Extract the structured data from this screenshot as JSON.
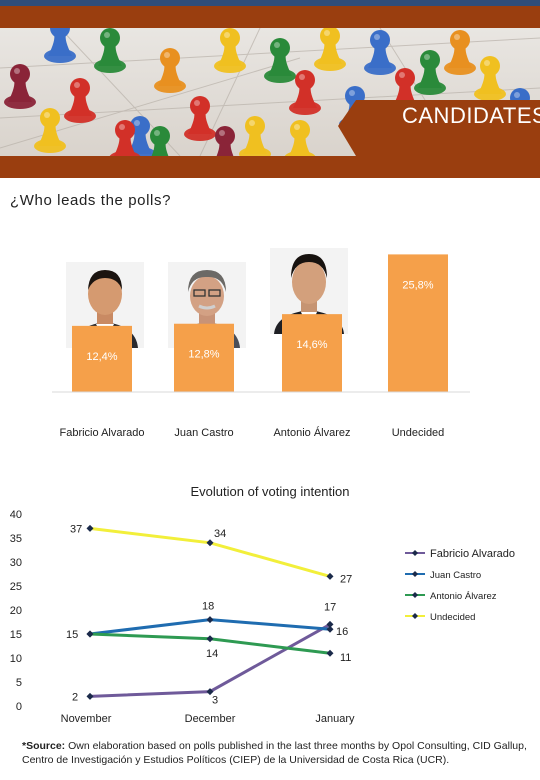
{
  "header": {
    "banner_title": "CANDIDATES",
    "banner_icon": "board-game-pawns-image"
  },
  "question": "¿Who leads the polls?",
  "colors": {
    "bar": "#f5a04a",
    "header_band": "#9a3e0f",
    "fabricio": "#6f5a9a",
    "juan": "#1f6cb0",
    "antonio": "#2e9a52",
    "undecided": "#f2ef3a"
  },
  "chart_data": [
    {
      "type": "bar",
      "categories": [
        "Fabricio Alvarado",
        "Juan Castro",
        "Antonio Álvarez",
        "Undecided"
      ],
      "values": [
        12.4,
        12.8,
        14.6,
        25.8
      ],
      "value_labels": [
        "12,4%",
        "12,8%",
        "14,6%",
        "25,8%"
      ],
      "ylim": [
        0,
        30
      ],
      "grid": false,
      "photos": [
        "fabricio-alvarado-photo",
        "juan-castro-photo",
        "antonio-alvarez-photo",
        ""
      ]
    },
    {
      "type": "line",
      "title": "Evolution of voting intention",
      "x": [
        "November",
        "December",
        "January"
      ],
      "ylim": [
        0,
        40
      ],
      "yticks": [
        0,
        5,
        10,
        15,
        20,
        25,
        30,
        35,
        40
      ],
      "grid": false,
      "legend": "right",
      "series": [
        {
          "name": "Fabricio Alvarado",
          "values": [
            2,
            3,
            17
          ],
          "labels": [
            "2",
            "3",
            "17"
          ]
        },
        {
          "name": "Juan Castro",
          "values": [
            15,
            18,
            16
          ],
          "labels": [
            "15",
            "18",
            "16"
          ]
        },
        {
          "name": "Antonio Álvarez",
          "values": [
            15,
            14,
            11
          ],
          "labels": [
            "",
            "14",
            "11"
          ]
        },
        {
          "name": "Undecided",
          "values": [
            37,
            34,
            27
          ],
          "labels": [
            "37",
            "34",
            "27"
          ]
        }
      ]
    }
  ],
  "source": {
    "label": "*Source:",
    "text": "Own elaboration based on polls published in the last three months by Opol Consulting, CID Gallup, Centro de Investigación y Estudios Políticos (CIEP) de la Universidad de Costa Rica (UCR)."
  }
}
